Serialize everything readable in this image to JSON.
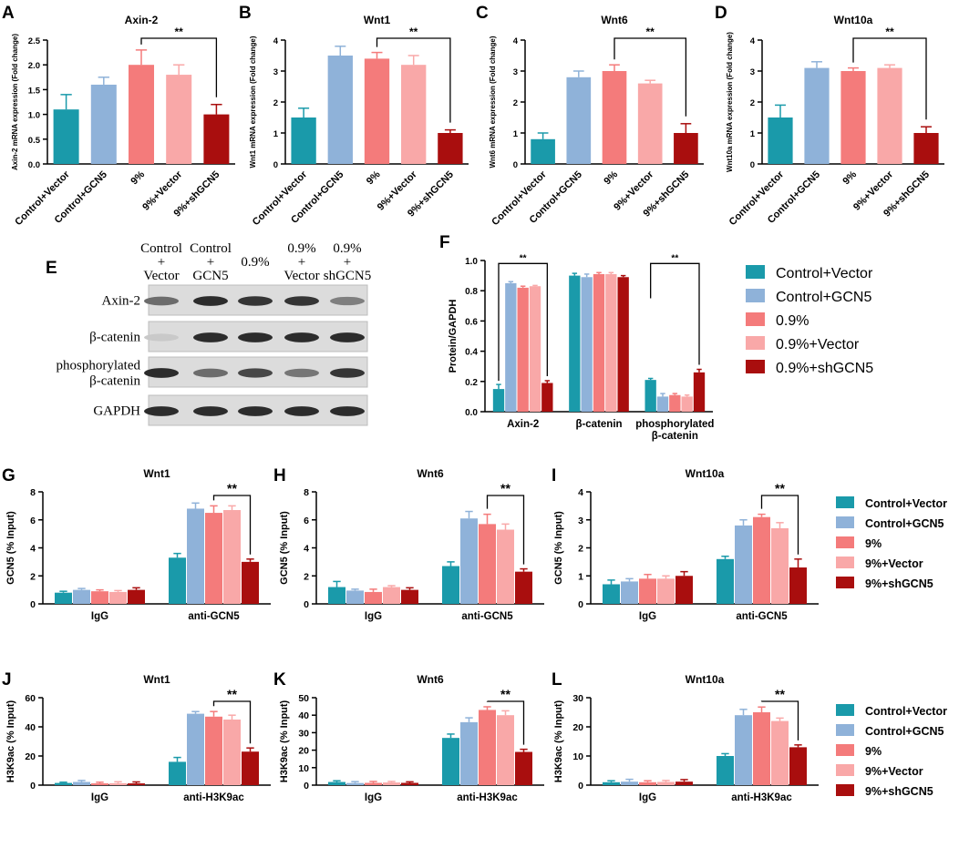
{
  "colors": {
    "Control+Vector": "#1a9aaa",
    "Control+GCN5": "#8fb2d9",
    "9%": "#f47b7b",
    "9%+Vector": "#f9a8a8",
    "9%+shGCN5": "#a90e0e"
  },
  "legends": {
    "F": [
      "Control+Vector",
      "Control+GCN5",
      "0.9%",
      "0.9%+Vector",
      "0.9%+shGCN5"
    ],
    "GHI": [
      "Control+Vector",
      "Control+GCN5",
      "9%",
      "9%+Vector",
      "9%+shGCN5"
    ],
    "JKL": [
      "Control+Vector",
      "Control+GCN5",
      "9%",
      "9%+Vector",
      "9%+shGCN5"
    ]
  },
  "western_blot": {
    "panel_letter": "E",
    "columns": [
      "Control\n+\nVector",
      "Control\n+\nGCN5",
      "0.9%",
      "0.9%\n+\nVector",
      "0.9%\n+\nshGCN5"
    ],
    "rows": [
      "Axin-2",
      "β-catenin",
      "phosphorylated\nβ-catenin",
      "GAPDH"
    ],
    "band_intensity": [
      [
        0.55,
        0.9,
        0.85,
        0.85,
        0.45
      ],
      [
        0.05,
        0.9,
        0.9,
        0.9,
        0.9
      ],
      [
        0.9,
        0.55,
        0.75,
        0.5,
        0.85
      ],
      [
        0.9,
        0.9,
        0.9,
        0.9,
        0.9
      ]
    ]
  },
  "chart_data": [
    {
      "id": "A",
      "type": "bar",
      "title": "Axin-2",
      "ylabel": "Axin-2 mRNA expression (Fold change)",
      "ylim": [
        0,
        2.5
      ],
      "yticks": [
        0,
        0.5,
        1.0,
        1.5,
        2.0,
        2.5
      ],
      "categories": [
        "Control+Vector",
        "Control+GCN5",
        "9%",
        "9%+Vector",
        "9%+shGCN5"
      ],
      "values": [
        1.1,
        1.6,
        2.0,
        1.8,
        1.0
      ],
      "errors": [
        0.3,
        0.15,
        0.3,
        0.2,
        0.2
      ],
      "significance": [
        {
          "from": 2,
          "to": 4,
          "label": "**"
        }
      ]
    },
    {
      "id": "B",
      "type": "bar",
      "title": "Wnt1",
      "ylabel": "Wnt1 mRNA expression (Fold change)",
      "ylim": [
        0,
        4
      ],
      "yticks": [
        0,
        1,
        2,
        3,
        4
      ],
      "categories": [
        "Control+Vector",
        "Control+GCN5",
        "9%",
        "9%+Vector",
        "9%+shGCN5"
      ],
      "values": [
        1.5,
        3.5,
        3.4,
        3.2,
        1.0
      ],
      "errors": [
        0.3,
        0.3,
        0.2,
        0.3,
        0.1
      ],
      "significance": [
        {
          "from": 2,
          "to": 4,
          "label": "**"
        }
      ]
    },
    {
      "id": "C",
      "type": "bar",
      "title": "Wnt6",
      "ylabel": "Wnt6 mRNA expression (Fold change)",
      "ylim": [
        0,
        4
      ],
      "yticks": [
        0,
        1,
        2,
        3,
        4
      ],
      "categories": [
        "Control+Vector",
        "Control+GCN5",
        "9%",
        "9%+Vector",
        "9%+shGCN5"
      ],
      "values": [
        0.8,
        2.8,
        3.0,
        2.6,
        1.0
      ],
      "errors": [
        0.2,
        0.2,
        0.2,
        0.1,
        0.3
      ],
      "significance": [
        {
          "from": 2,
          "to": 4,
          "label": "**"
        }
      ]
    },
    {
      "id": "D",
      "type": "bar",
      "title": "Wnt10a",
      "ylabel": "Wnt10a mRNA expression (Fold change)",
      "ylim": [
        0,
        4
      ],
      "yticks": [
        0,
        1,
        2,
        3,
        4
      ],
      "categories": [
        "Control+Vector",
        "Control+GCN5",
        "9%",
        "9%+Vector",
        "9%+shGCN5"
      ],
      "values": [
        1.5,
        3.1,
        3.0,
        3.1,
        1.0
      ],
      "errors": [
        0.4,
        0.2,
        0.1,
        0.1,
        0.2
      ],
      "significance": [
        {
          "from": 2,
          "to": 4,
          "label": "**"
        }
      ]
    },
    {
      "id": "F",
      "type": "bar",
      "title": "",
      "ylabel": "Protein/GAPDH",
      "ylim": [
        0,
        1.0
      ],
      "yticks": [
        0.0,
        0.2,
        0.4,
        0.6,
        0.8,
        1.0
      ],
      "groups": [
        "Axin-2",
        "β-catenin",
        "phosphorylated\nβ-catenin"
      ],
      "series": [
        {
          "name": "Control+Vector",
          "values": [
            0.15,
            0.9,
            0.21
          ],
          "errors": [
            0.03,
            0.015,
            0.01
          ]
        },
        {
          "name": "Control+GCN5",
          "values": [
            0.85,
            0.89,
            0.1
          ],
          "errors": [
            0.01,
            0.02,
            0.02
          ]
        },
        {
          "name": "0.9%",
          "values": [
            0.82,
            0.91,
            0.11
          ],
          "errors": [
            0.01,
            0.01,
            0.01
          ]
        },
        {
          "name": "0.9%+Vector",
          "values": [
            0.83,
            0.91,
            0.1
          ],
          "errors": [
            0.005,
            0.01,
            0.01
          ]
        },
        {
          "name": "0.9%+shGCN5",
          "values": [
            0.19,
            0.89,
            0.26
          ],
          "errors": [
            0.015,
            0.01,
            0.02
          ]
        }
      ],
      "significance": [
        {
          "group": 0,
          "from": 0,
          "to": 4,
          "label": "**"
        },
        {
          "group": 2,
          "from": 0,
          "to": 4,
          "label": "**"
        }
      ]
    },
    {
      "id": "G",
      "type": "bar",
      "title": "Wnt1",
      "ylabel": "GCN5 (% Input)",
      "ylim": [
        0,
        8
      ],
      "yticks": [
        0,
        2,
        4,
        6,
        8
      ],
      "groups": [
        "IgG",
        "anti-GCN5"
      ],
      "series": [
        {
          "name": "Control+Vector",
          "values": [
            0.8,
            3.3
          ],
          "errors": [
            0.1,
            0.3
          ]
        },
        {
          "name": "Control+GCN5",
          "values": [
            1.0,
            6.8
          ],
          "errors": [
            0.1,
            0.4
          ]
        },
        {
          "name": "9%",
          "values": [
            0.9,
            6.5
          ],
          "errors": [
            0.1,
            0.5
          ]
        },
        {
          "name": "9%+Vector",
          "values": [
            0.85,
            6.7
          ],
          "errors": [
            0.1,
            0.3
          ]
        },
        {
          "name": "9%+shGCN5",
          "values": [
            1.0,
            3.0
          ],
          "errors": [
            0.15,
            0.2
          ]
        }
      ],
      "significance": [
        {
          "group": 1,
          "from": 2,
          "to": 4,
          "label": "**"
        }
      ]
    },
    {
      "id": "H",
      "type": "bar",
      "title": "Wnt6",
      "ylabel": "GCN5 (% Input)",
      "ylim": [
        0,
        8
      ],
      "yticks": [
        0,
        2,
        4,
        6,
        8
      ],
      "groups": [
        "IgG",
        "anti-GCN5"
      ],
      "series": [
        {
          "name": "Control+Vector",
          "values": [
            1.2,
            2.7
          ],
          "errors": [
            0.4,
            0.3
          ]
        },
        {
          "name": "Control+GCN5",
          "values": [
            0.95,
            6.1
          ],
          "errors": [
            0.1,
            0.5
          ]
        },
        {
          "name": "9%",
          "values": [
            0.85,
            5.7
          ],
          "errors": [
            0.2,
            0.7
          ]
        },
        {
          "name": "9%+Vector",
          "values": [
            1.2,
            5.3
          ],
          "errors": [
            0.1,
            0.4
          ]
        },
        {
          "name": "9%+shGCN5",
          "values": [
            1.0,
            2.3
          ],
          "errors": [
            0.15,
            0.2
          ]
        }
      ],
      "significance": [
        {
          "group": 1,
          "from": 2,
          "to": 4,
          "label": "**"
        }
      ]
    },
    {
      "id": "I",
      "type": "bar",
      "title": "Wnt10a",
      "ylabel": "GCN5 (% Input)",
      "ylim": [
        0,
        4
      ],
      "yticks": [
        0,
        1,
        2,
        3,
        4
      ],
      "groups": [
        "IgG",
        "anti-GCN5"
      ],
      "series": [
        {
          "name": "Control+Vector",
          "values": [
            0.7,
            1.6
          ],
          "errors": [
            0.15,
            0.1
          ]
        },
        {
          "name": "Control+GCN5",
          "values": [
            0.8,
            2.8
          ],
          "errors": [
            0.1,
            0.2
          ]
        },
        {
          "name": "9%",
          "values": [
            0.9,
            3.1
          ],
          "errors": [
            0.15,
            0.1
          ]
        },
        {
          "name": "9%+Vector",
          "values": [
            0.9,
            2.7
          ],
          "errors": [
            0.1,
            0.2
          ]
        },
        {
          "name": "9%+shGCN5",
          "values": [
            1.0,
            1.3
          ],
          "errors": [
            0.15,
            0.3
          ]
        }
      ],
      "significance": [
        {
          "group": 1,
          "from": 2,
          "to": 4,
          "label": "**"
        }
      ]
    },
    {
      "id": "J",
      "type": "bar",
      "title": "Wnt1",
      "ylabel": "H3K9ac (% Input)",
      "ylim": [
        0,
        60
      ],
      "yticks": [
        0,
        20,
        40,
        60
      ],
      "groups": [
        "IgG",
        "anti-H3K9ac"
      ],
      "series": [
        {
          "name": "Control+Vector",
          "values": [
            1.5,
            16
          ],
          "errors": [
            0.5,
            3
          ]
        },
        {
          "name": "Control+GCN5",
          "values": [
            2.2,
            49
          ],
          "errors": [
            1,
            1.5
          ]
        },
        {
          "name": "9%",
          "values": [
            1.2,
            47
          ],
          "errors": [
            0.8,
            3.5
          ]
        },
        {
          "name": "9%+Vector",
          "values": [
            1.3,
            45
          ],
          "errors": [
            1,
            3
          ]
        },
        {
          "name": "9%+shGCN5",
          "values": [
            1.2,
            23
          ],
          "errors": [
            1,
            2.5
          ]
        }
      ],
      "significance": [
        {
          "group": 1,
          "from": 2,
          "to": 4,
          "label": "**"
        }
      ]
    },
    {
      "id": "K",
      "type": "bar",
      "title": "Wnt6",
      "ylabel": "H3K9ac (% Input)",
      "ylim": [
        0,
        50
      ],
      "yticks": [
        0,
        10,
        20,
        30,
        40,
        50
      ],
      "groups": [
        "IgG",
        "anti-H3K9ac"
      ],
      "series": [
        {
          "name": "Control+Vector",
          "values": [
            1.8,
            27
          ],
          "errors": [
            0.7,
            2.2
          ]
        },
        {
          "name": "Control+GCN5",
          "values": [
            1.2,
            36
          ],
          "errors": [
            0.8,
            2.5
          ]
        },
        {
          "name": "9%",
          "values": [
            1.3,
            43
          ],
          "errors": [
            0.8,
            1.8
          ]
        },
        {
          "name": "9%+Vector",
          "values": [
            1.5,
            40
          ],
          "errors": [
            0.6,
            2.5
          ]
        },
        {
          "name": "9%+shGCN5",
          "values": [
            1.3,
            19
          ],
          "errors": [
            0.6,
            1.5
          ]
        }
      ],
      "significance": [
        {
          "group": 1,
          "from": 2,
          "to": 4,
          "label": "**"
        }
      ]
    },
    {
      "id": "L",
      "type": "bar",
      "title": "Wnt10a",
      "ylabel": "H3K9ac (% Input)",
      "ylim": [
        0,
        30
      ],
      "yticks": [
        0,
        10,
        20,
        30
      ],
      "groups": [
        "IgG",
        "anti-H3K9ac"
      ],
      "series": [
        {
          "name": "Control+Vector",
          "values": [
            1.0,
            10
          ],
          "errors": [
            0.5,
            0.8
          ]
        },
        {
          "name": "Control+GCN5",
          "values": [
            1.2,
            24
          ],
          "errors": [
            0.8,
            2
          ]
        },
        {
          "name": "9%",
          "values": [
            1.0,
            25
          ],
          "errors": [
            0.5,
            1.8
          ]
        },
        {
          "name": "9%+Vector",
          "values": [
            1.1,
            22
          ],
          "errors": [
            0.5,
            1
          ]
        },
        {
          "name": "9%+shGCN5",
          "values": [
            1.2,
            13
          ],
          "errors": [
            0.7,
            0.8
          ]
        }
      ],
      "significance": [
        {
          "group": 1,
          "from": 2,
          "to": 4,
          "label": "**"
        }
      ]
    }
  ]
}
